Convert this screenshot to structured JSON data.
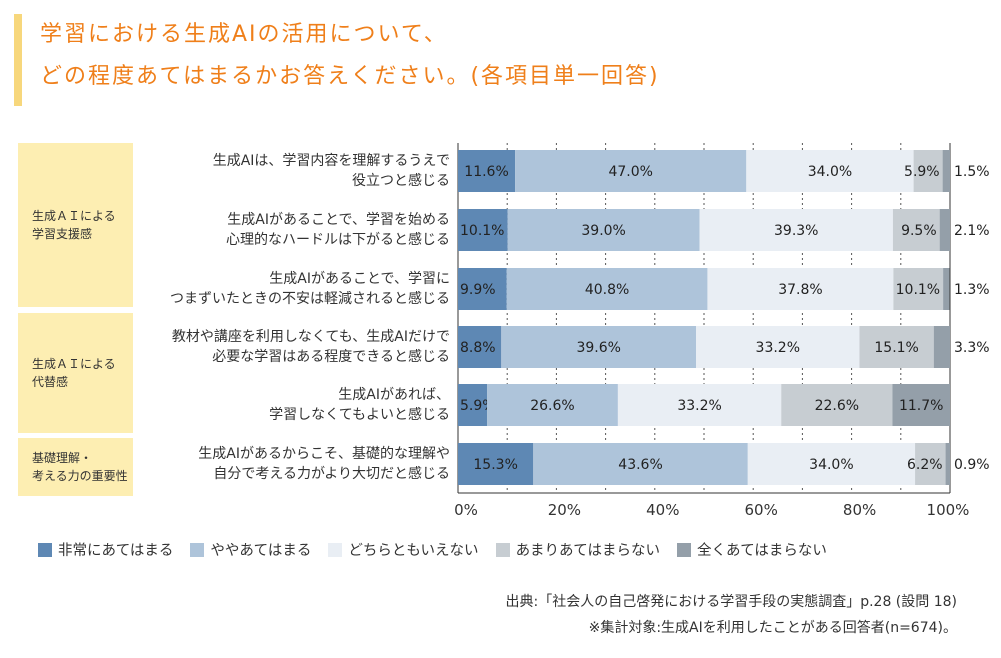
{
  "title": {
    "line1": "学習における生成AIの活用について、",
    "line2": "どの程度あてはまるかお答えください。(各項目単一回答)"
  },
  "categories": [
    {
      "label": "生成ＡＩによる\n学習支援感",
      "rows": [
        0,
        1,
        2
      ]
    },
    {
      "label": "生成ＡＩによる\n代替感",
      "rows": [
        3,
        4
      ]
    },
    {
      "label": "基礎理解・\n考える力の重要性",
      "rows": [
        5
      ]
    }
  ],
  "colors": [
    "#5e88b4",
    "#aec4da",
    "#e9eef4",
    "#c7cdd2",
    "#949fa9"
  ],
  "legend": [
    "非常にあてはまる",
    "ややあてはまる",
    "どちらともいえない",
    "あまりあてはまらない",
    "全くあてはまらない"
  ],
  "source": {
    "line1": "出典:「社会人の自己啓発における学習手段の実態調査」p.28 (設問 18)",
    "line2": "※集計対象:生成AIを利用したことがある回答者(n=674)。"
  },
  "chart_data": {
    "type": "bar",
    "orientation": "horizontal",
    "stacked": true,
    "xlim": [
      0,
      100
    ],
    "xticks": [
      "0%",
      "20%",
      "40%",
      "60%",
      "80%",
      "100%"
    ],
    "categories": [
      "生成AIは、学習内容を理解するうえで\n役立つと感じる",
      "生成AIがあることで、学習を始める\n心理的なハードルは下がると感じる",
      "生成AIがあることで、学習に\nつまずいたときの不安は軽減されると感じる",
      "教材や講座を利用しなくても、生成AIだけで\n必要な学習はある程度できると感じる",
      "生成AIがあれば、\n学習しなくてもよいと感じる",
      "生成AIがあるからこそ、基礎的な理解や\n自分で考える力がより大切だと感じる"
    ],
    "series": [
      {
        "name": "非常にあてはまる",
        "values": [
          11.6,
          10.1,
          9.9,
          8.8,
          5.9,
          15.3
        ]
      },
      {
        "name": "ややあてはまる",
        "values": [
          47.0,
          39.0,
          40.8,
          39.6,
          26.6,
          43.6
        ]
      },
      {
        "name": "どちらともいえない",
        "values": [
          34.0,
          39.3,
          37.8,
          33.2,
          33.2,
          34.0
        ]
      },
      {
        "name": "あまりあてはまらない",
        "values": [
          5.9,
          9.5,
          10.1,
          15.1,
          22.6,
          6.2
        ]
      },
      {
        "name": "全くあてはまらない",
        "values": [
          1.5,
          2.1,
          1.3,
          3.3,
          11.7,
          0.9
        ]
      }
    ],
    "grid": true,
    "legend_position": "bottom"
  }
}
